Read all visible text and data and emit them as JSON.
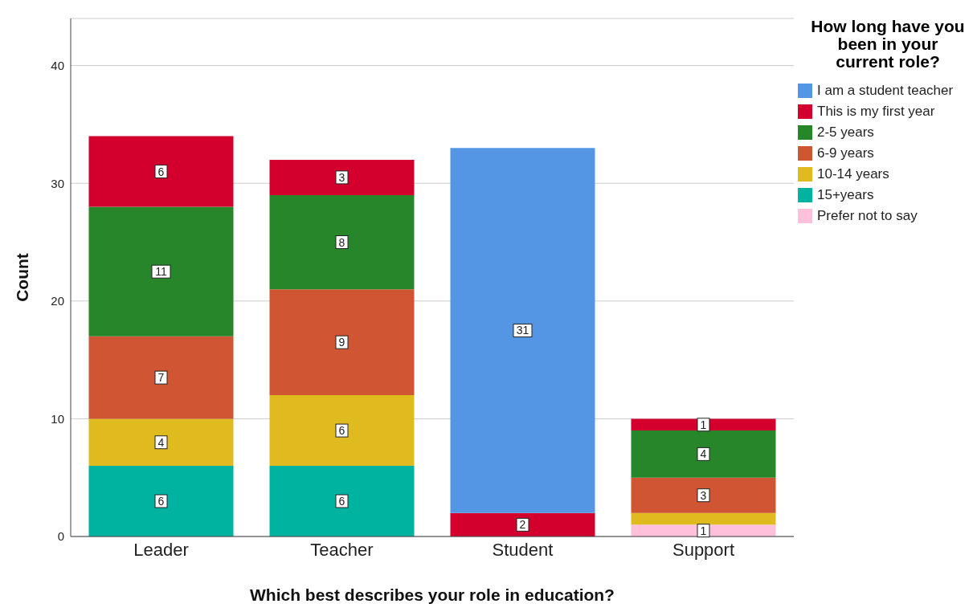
{
  "chart_data": {
    "type": "bar",
    "stacked": true,
    "xlabel": "Which best describes your role in education?",
    "ylabel": "Count",
    "legend_title": "How long have you been in your current role?",
    "legend": "top right",
    "grid": "y",
    "categories": [
      "Leader",
      "Teacher",
      "Student",
      "Support"
    ],
    "ylim": [
      0,
      44
    ],
    "yticks": [
      0,
      10,
      20,
      30,
      40
    ],
    "series": [
      {
        "name": "Prefer not to say",
        "color": "#ffc0dc",
        "values": [
          null,
          null,
          null,
          1
        ],
        "value_labels": [
          null,
          null,
          null,
          "1"
        ]
      },
      {
        "name": "15+years",
        "color": "#00b2a0",
        "values": [
          6,
          6,
          null,
          null
        ],
        "value_labels": [
          "6",
          "6",
          null,
          null
        ]
      },
      {
        "name": "10-14 years",
        "color": "#e0bb20",
        "values": [
          4,
          6,
          null,
          1
        ],
        "value_labels": [
          "4",
          "6",
          null,
          null
        ]
      },
      {
        "name": "6-9 years",
        "color": "#d05533",
        "values": [
          7,
          9,
          null,
          3
        ],
        "value_labels": [
          "7",
          "9",
          null,
          "3"
        ]
      },
      {
        "name": "2-5 years",
        "color": "#28862a",
        "values": [
          11,
          8,
          null,
          4
        ],
        "value_labels": [
          "11",
          "8",
          null,
          "4"
        ]
      },
      {
        "name": "This is my first year",
        "color": "#d3002e",
        "values": [
          6,
          3,
          2,
          1
        ],
        "value_labels": [
          "6",
          "3",
          "2",
          "1"
        ]
      },
      {
        "name": "I am a student teacher",
        "color": "#5596e4",
        "values": [
          null,
          null,
          31,
          null
        ],
        "value_labels": [
          null,
          null,
          "31",
          null
        ]
      }
    ]
  }
}
